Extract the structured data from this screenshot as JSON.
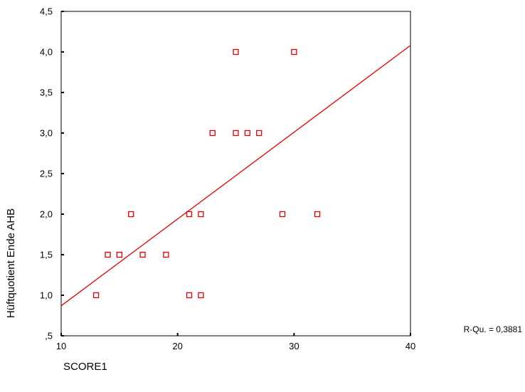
{
  "chart_data": {
    "type": "scatter",
    "xlabel": "SCORE1",
    "ylabel": "Hüftquotient Ende AHB",
    "xlim": [
      10,
      40
    ],
    "ylim": [
      0.5,
      4.5
    ],
    "x_ticks": [
      "10",
      "20",
      "30",
      "40"
    ],
    "y_ticks": [
      ",5",
      "1,0",
      "1,5",
      "2,0",
      "2,5",
      "3,0",
      "3,5",
      "4,0",
      "4,5"
    ],
    "points": [
      {
        "x": 13,
        "y": 1.0
      },
      {
        "x": 14,
        "y": 1.5
      },
      {
        "x": 15,
        "y": 1.5
      },
      {
        "x": 16,
        "y": 2.0
      },
      {
        "x": 17,
        "y": 1.5
      },
      {
        "x": 19,
        "y": 1.5
      },
      {
        "x": 21,
        "y": 1.0
      },
      {
        "x": 21,
        "y": 2.0
      },
      {
        "x": 22,
        "y": 1.0
      },
      {
        "x": 22,
        "y": 2.0
      },
      {
        "x": 23,
        "y": 3.0
      },
      {
        "x": 25,
        "y": 3.0
      },
      {
        "x": 25,
        "y": 4.0
      },
      {
        "x": 26,
        "y": 3.0
      },
      {
        "x": 27,
        "y": 3.0
      },
      {
        "x": 29,
        "y": 2.0
      },
      {
        "x": 30,
        "y": 4.0
      },
      {
        "x": 32,
        "y": 2.0
      }
    ],
    "fit_line": {
      "x": [
        10,
        40
      ],
      "y": [
        0.87,
        4.08
      ]
    },
    "annotation": "R-Qu. = 0,3881",
    "grid": false,
    "color": "#e00000"
  }
}
